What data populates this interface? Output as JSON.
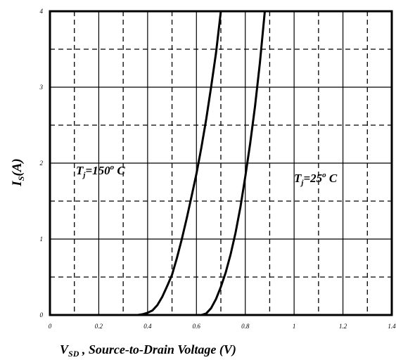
{
  "chart_data": {
    "type": "line",
    "xlim": [
      0,
      1.4
    ],
    "ylim": [
      0,
      4
    ],
    "x_ticks": [
      0,
      0.2,
      0.4,
      0.6,
      0.8,
      1.0,
      1.2,
      1.4
    ],
    "x_tick_labels": [
      "0",
      "0.2",
      "0.4",
      "0.6",
      "0.8",
      "1",
      "1.2",
      "1.4"
    ],
    "y_ticks": [
      0,
      1,
      2,
      3,
      4
    ],
    "y_tick_labels": [
      "0",
      "1",
      "2",
      "3",
      "4"
    ],
    "minor_x_gridlines": [
      0.1,
      0.3,
      0.5,
      0.7,
      0.9,
      1.1,
      1.3
    ],
    "minor_y_gridlines": [
      0.5,
      1.5,
      2.5,
      3.5
    ],
    "grid": true,
    "xlabel": {
      "main": "V",
      "subscript": "SD",
      "rest": " , Source-to-Drain Voltage (V)"
    },
    "ylabel": {
      "main": "I",
      "subscript": "S",
      "rest": "(A)"
    },
    "annotations": [
      {
        "base": "T",
        "sub": "j",
        "text": "=150",
        "sup": "o",
        "unit": " C"
      },
      {
        "base": "T",
        "sub": "j",
        "text": "=25",
        "sup": "o",
        "unit": " C"
      }
    ],
    "series": [
      {
        "x": [
          0.36,
          0.38,
          0.4,
          0.42,
          0.44,
          0.46,
          0.48,
          0.5,
          0.52,
          0.54,
          0.56,
          0.58,
          0.6,
          0.62,
          0.64,
          0.66,
          0.68,
          0.7
        ],
        "y": [
          0.0,
          0.01,
          0.03,
          0.06,
          0.13,
          0.24,
          0.38,
          0.53,
          0.75,
          1.0,
          1.27,
          1.56,
          1.86,
          2.2,
          2.58,
          3.0,
          3.45,
          4.0
        ]
      },
      {
        "x": [
          0.62,
          0.64,
          0.66,
          0.68,
          0.7,
          0.72,
          0.74,
          0.76,
          0.78,
          0.8,
          0.82,
          0.84,
          0.86,
          0.88
        ],
        "y": [
          0.0,
          0.02,
          0.09,
          0.21,
          0.37,
          0.56,
          0.8,
          1.08,
          1.42,
          1.82,
          2.26,
          2.75,
          3.32,
          4.0
        ]
      }
    ]
  }
}
